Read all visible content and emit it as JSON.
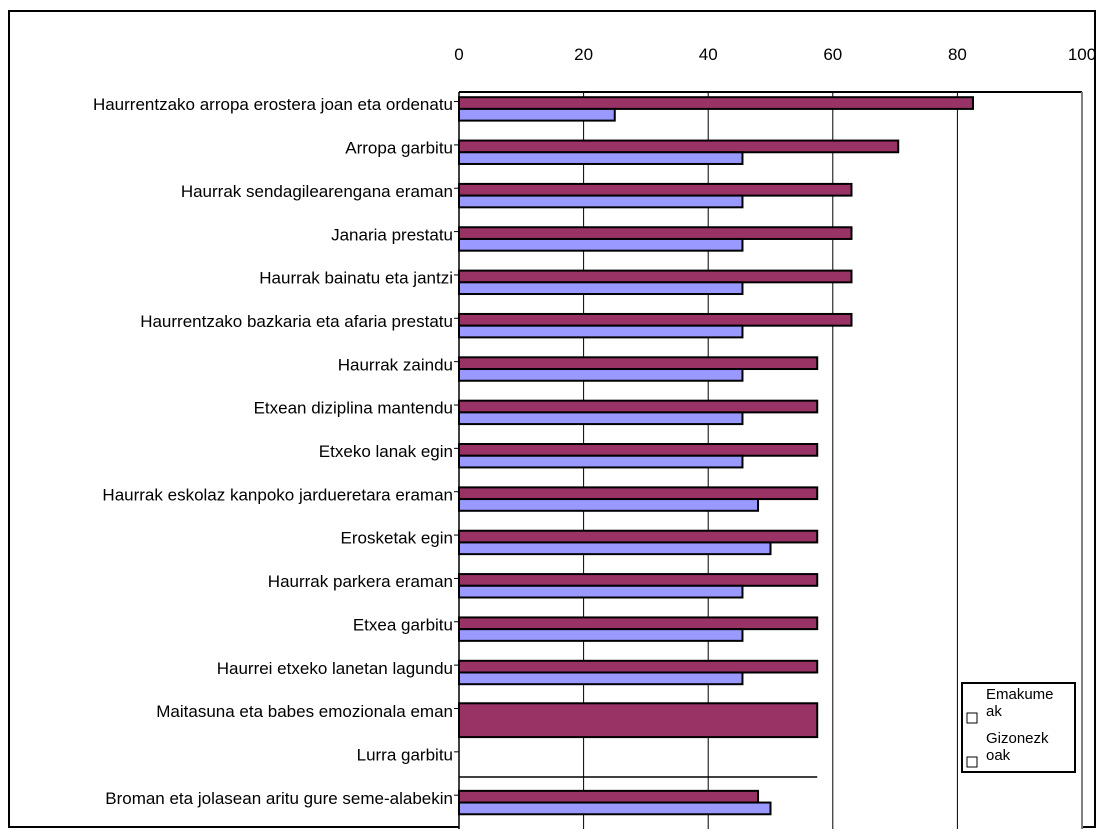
{
  "chart_data": {
    "type": "bar",
    "orientation": "horizontal",
    "xlim": [
      0,
      100
    ],
    "xticks": [
      "0",
      "20",
      "40",
      "60",
      "80",
      "100"
    ],
    "grid": "vertical lines",
    "legend_position": "bottom-right",
    "categories": [
      "Haurrentzako arropa erostera joan eta ordenatu",
      "Arropa garbitu",
      "Haurrak sendagilearengana eraman",
      "Janaria prestatu",
      "Haurrak bainatu eta jantzi",
      "Haurrentzako bazkaria eta afaria prestatu",
      "Haurrak zaindu",
      "Etxean diziplina mantendu",
      "Etxeko lanak egin",
      "Haurrak eskolaz kanpoko jardueretara eraman",
      "Erosketak egin",
      "Haurrak parkera eraman",
      "Etxea garbitu",
      "Haurrei etxeko lanetan lagundu",
      "Maitasuna eta babes emozionala eman",
      "Lurra garbitu",
      "Broman eta jolasean aritu gure seme-alabekin"
    ],
    "series": [
      {
        "name": "Emakumeak",
        "legend_label": [
          "Emakume",
          "ak"
        ],
        "color": "#993366",
        "values": [
          82.5,
          70.5,
          63,
          63,
          63,
          63,
          57.5,
          57.5,
          57.5,
          57.5,
          57.5,
          57.5,
          57.5,
          57.5,
          57.5,
          null,
          48
        ]
      },
      {
        "name": "Gizonezkoak",
        "legend_label": [
          "Gizonezk",
          "oak"
        ],
        "color": "#9999ff",
        "values": [
          25,
          45.5,
          45.5,
          45.5,
          45.5,
          45.5,
          45.5,
          45.5,
          45.5,
          48,
          50,
          45.5,
          45.5,
          45.5,
          null,
          null,
          50
        ]
      }
    ]
  }
}
